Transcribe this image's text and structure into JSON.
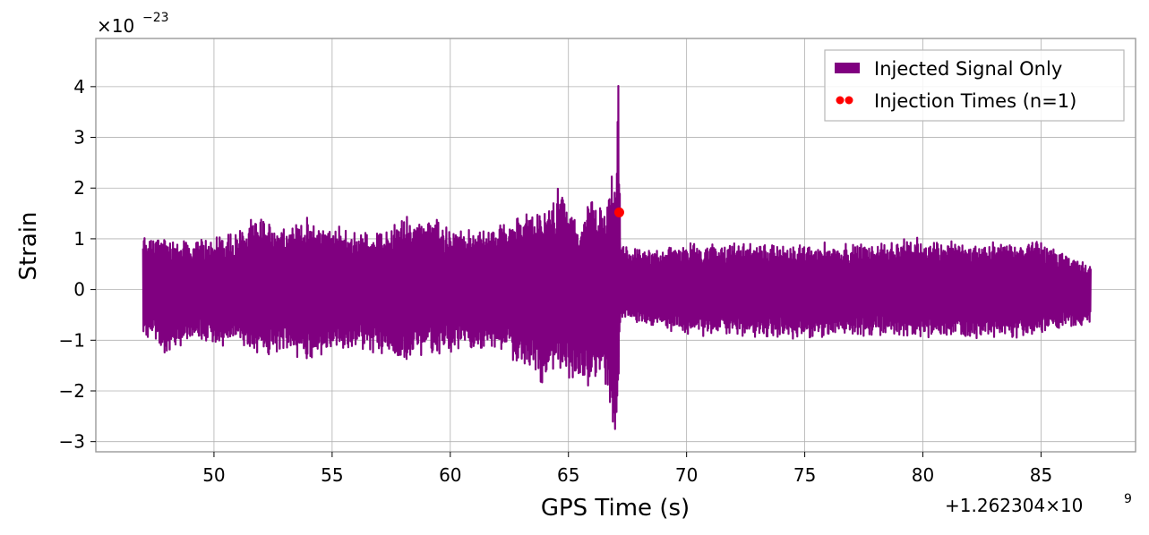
{
  "chart_data": {
    "type": "line",
    "xlabel": "GPS Time (s)",
    "ylabel": "Strain",
    "x_offset_label": "+1.262304×10",
    "x_offset_exp": "9",
    "y_scale_label": "×10",
    "y_scale_exp": "−23",
    "xlim": [
      45.0,
      89.0
    ],
    "ylim": [
      -3.2,
      4.95
    ],
    "x_ticks": [
      50,
      55,
      60,
      65,
      70,
      75,
      80,
      85
    ],
    "x_tick_labels": [
      "50",
      "55",
      "60",
      "65",
      "70",
      "75",
      "80",
      "85"
    ],
    "y_ticks": [
      -3,
      -2,
      -1,
      0,
      1,
      2,
      3,
      4
    ],
    "y_tick_labels": [
      "−3",
      "−2",
      "−1",
      "0",
      "1",
      "2",
      "3",
      "4"
    ],
    "grid": true,
    "legend_position": "top-right",
    "series": [
      {
        "name": "Injected Signal Only",
        "color": "#800080",
        "x_range": [
          47.0,
          87.1
        ],
        "envelope": {
          "x": [
            47.0,
            48.0,
            49.0,
            50.0,
            51.0,
            52.0,
            53.0,
            54.0,
            55.0,
            56.0,
            57.0,
            58.0,
            59.0,
            60.0,
            61.0,
            62.0,
            63.0,
            63.5,
            64.0,
            64.5,
            65.0,
            65.5,
            66.0,
            66.5,
            66.8,
            67.0,
            67.1,
            67.2,
            68.0,
            70.0,
            72.0,
            75.0,
            78.0,
            80.0,
            82.0,
            85.0,
            87.1
          ],
          "upper": [
            1.15,
            1.1,
            1.0,
            1.1,
            1.25,
            1.5,
            1.3,
            1.45,
            1.3,
            1.2,
            1.15,
            1.5,
            1.6,
            1.25,
            1.2,
            1.3,
            1.6,
            1.55,
            1.6,
            2.05,
            1.9,
            1.2,
            2.15,
            1.5,
            2.3,
            2.6,
            4.6,
            1.0,
            0.8,
            0.95,
            0.95,
            0.95,
            0.95,
            1.05,
            0.95,
            1.0,
            0.5
          ],
          "lower": [
            -0.9,
            -1.35,
            -1.0,
            -1.2,
            -1.05,
            -1.35,
            -1.4,
            -1.45,
            -1.3,
            -1.2,
            -1.35,
            -1.5,
            -1.3,
            -1.3,
            -1.2,
            -1.3,
            -1.55,
            -1.6,
            -2.05,
            -1.65,
            -1.75,
            -1.9,
            -2.05,
            -1.8,
            -2.5,
            -2.9,
            -2.85,
            -0.6,
            -0.7,
            -0.95,
            -0.95,
            -1.0,
            -0.95,
            -1.05,
            -1.0,
            -0.95,
            -0.7
          ]
        }
      },
      {
        "name": "Injection Times (n=1)",
        "color": "#ff0000",
        "type": "scatter",
        "x": [
          67.15
        ],
        "y": [
          1.52
        ]
      }
    ]
  }
}
